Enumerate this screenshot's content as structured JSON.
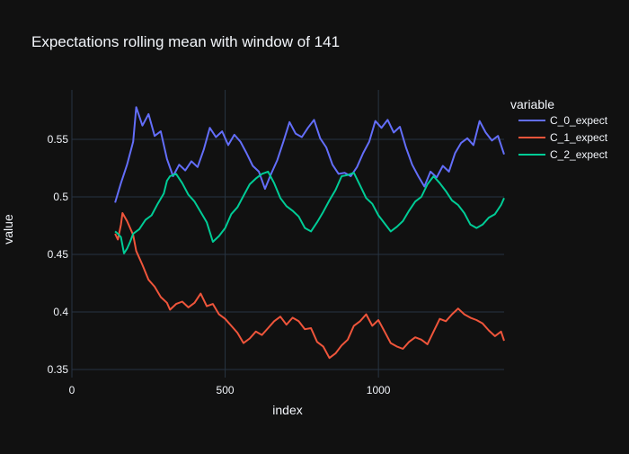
{
  "chart_data": {
    "type": "line",
    "title": "Expectations rolling mean with window of 141",
    "xlabel": "index",
    "ylabel": "value",
    "xlim": [
      0,
      1410
    ],
    "ylim": [
      0.343,
      0.593
    ],
    "xticks": [
      0,
      500,
      1000
    ],
    "xtick_labels": [
      "0",
      "500",
      "1000"
    ],
    "yticks": [
      0.35,
      0.4,
      0.45,
      0.5,
      0.55
    ],
    "ytick_labels": [
      "0.35",
      "0.4",
      "0.45",
      "0.5",
      "0.55"
    ],
    "grid": true,
    "legend_title": "variable",
    "legend_position": "top-right",
    "colors": {
      "background": "#111111",
      "grid": "#283442",
      "text": "#f2f5fa"
    },
    "series": [
      {
        "name": "C_0_expect",
        "color": "#636efa",
        "points": [
          [
            141,
            0.495
          ],
          [
            160,
            0.512
          ],
          [
            180,
            0.528
          ],
          [
            200,
            0.548
          ],
          [
            210,
            0.578
          ],
          [
            230,
            0.562
          ],
          [
            250,
            0.572
          ],
          [
            270,
            0.553
          ],
          [
            290,
            0.557
          ],
          [
            310,
            0.533
          ],
          [
            330,
            0.518
          ],
          [
            350,
            0.528
          ],
          [
            370,
            0.523
          ],
          [
            390,
            0.531
          ],
          [
            410,
            0.526
          ],
          [
            430,
            0.541
          ],
          [
            450,
            0.56
          ],
          [
            470,
            0.552
          ],
          [
            490,
            0.557
          ],
          [
            510,
            0.545
          ],
          [
            530,
            0.554
          ],
          [
            550,
            0.548
          ],
          [
            570,
            0.538
          ],
          [
            590,
            0.527
          ],
          [
            610,
            0.522
          ],
          [
            630,
            0.507
          ],
          [
            650,
            0.52
          ],
          [
            670,
            0.532
          ],
          [
            690,
            0.548
          ],
          [
            710,
            0.565
          ],
          [
            730,
            0.555
          ],
          [
            750,
            0.552
          ],
          [
            770,
            0.56
          ],
          [
            790,
            0.567
          ],
          [
            810,
            0.551
          ],
          [
            830,
            0.543
          ],
          [
            850,
            0.528
          ],
          [
            870,
            0.52
          ],
          [
            890,
            0.521
          ],
          [
            910,
            0.518
          ],
          [
            930,
            0.526
          ],
          [
            950,
            0.538
          ],
          [
            970,
            0.548
          ],
          [
            990,
            0.566
          ],
          [
            1010,
            0.56
          ],
          [
            1030,
            0.567
          ],
          [
            1050,
            0.556
          ],
          [
            1070,
            0.561
          ],
          [
            1090,
            0.543
          ],
          [
            1110,
            0.528
          ],
          [
            1130,
            0.518
          ],
          [
            1150,
            0.509
          ],
          [
            1170,
            0.522
          ],
          [
            1190,
            0.517
          ],
          [
            1210,
            0.527
          ],
          [
            1230,
            0.522
          ],
          [
            1250,
            0.538
          ],
          [
            1270,
            0.547
          ],
          [
            1290,
            0.551
          ],
          [
            1310,
            0.545
          ],
          [
            1330,
            0.566
          ],
          [
            1350,
            0.556
          ],
          [
            1370,
            0.549
          ],
          [
            1390,
            0.553
          ],
          [
            1410,
            0.537
          ]
        ]
      },
      {
        "name": "C_1_expect",
        "color": "#ef553b",
        "points": [
          [
            141,
            0.468
          ],
          [
            150,
            0.463
          ],
          [
            160,
            0.476
          ],
          [
            165,
            0.486
          ],
          [
            180,
            0.479
          ],
          [
            200,
            0.467
          ],
          [
            210,
            0.453
          ],
          [
            230,
            0.441
          ],
          [
            250,
            0.428
          ],
          [
            270,
            0.422
          ],
          [
            290,
            0.413
          ],
          [
            310,
            0.408
          ],
          [
            320,
            0.402
          ],
          [
            340,
            0.407
          ],
          [
            360,
            0.409
          ],
          [
            380,
            0.404
          ],
          [
            400,
            0.408
          ],
          [
            420,
            0.416
          ],
          [
            440,
            0.405
          ],
          [
            460,
            0.407
          ],
          [
            480,
            0.398
          ],
          [
            500,
            0.394
          ],
          [
            520,
            0.388
          ],
          [
            540,
            0.382
          ],
          [
            560,
            0.373
          ],
          [
            580,
            0.377
          ],
          [
            600,
            0.383
          ],
          [
            620,
            0.38
          ],
          [
            640,
            0.386
          ],
          [
            660,
            0.392
          ],
          [
            680,
            0.396
          ],
          [
            700,
            0.389
          ],
          [
            720,
            0.395
          ],
          [
            740,
            0.392
          ],
          [
            760,
            0.385
          ],
          [
            780,
            0.386
          ],
          [
            800,
            0.374
          ],
          [
            820,
            0.37
          ],
          [
            840,
            0.36
          ],
          [
            860,
            0.364
          ],
          [
            880,
            0.371
          ],
          [
            900,
            0.376
          ],
          [
            920,
            0.388
          ],
          [
            940,
            0.392
          ],
          [
            960,
            0.398
          ],
          [
            980,
            0.388
          ],
          [
            1000,
            0.393
          ],
          [
            1020,
            0.383
          ],
          [
            1040,
            0.373
          ],
          [
            1060,
            0.37
          ],
          [
            1080,
            0.368
          ],
          [
            1100,
            0.374
          ],
          [
            1120,
            0.378
          ],
          [
            1140,
            0.376
          ],
          [
            1160,
            0.372
          ],
          [
            1180,
            0.383
          ],
          [
            1200,
            0.394
          ],
          [
            1220,
            0.392
          ],
          [
            1240,
            0.398
          ],
          [
            1260,
            0.403
          ],
          [
            1280,
            0.398
          ],
          [
            1300,
            0.395
          ],
          [
            1320,
            0.393
          ],
          [
            1340,
            0.39
          ],
          [
            1360,
            0.384
          ],
          [
            1380,
            0.379
          ],
          [
            1400,
            0.383
          ],
          [
            1410,
            0.375
          ]
        ]
      },
      {
        "name": "C_2_expect",
        "color": "#00cc96",
        "points": [
          [
            141,
            0.47
          ],
          [
            150,
            0.468
          ],
          [
            160,
            0.465
          ],
          [
            170,
            0.451
          ],
          [
            180,
            0.455
          ],
          [
            190,
            0.461
          ],
          [
            200,
            0.468
          ],
          [
            220,
            0.472
          ],
          [
            240,
            0.48
          ],
          [
            260,
            0.484
          ],
          [
            280,
            0.494
          ],
          [
            300,
            0.503
          ],
          [
            310,
            0.514
          ],
          [
            320,
            0.518
          ],
          [
            340,
            0.52
          ],
          [
            360,
            0.512
          ],
          [
            380,
            0.502
          ],
          [
            400,
            0.496
          ],
          [
            420,
            0.487
          ],
          [
            440,
            0.478
          ],
          [
            460,
            0.461
          ],
          [
            480,
            0.466
          ],
          [
            500,
            0.473
          ],
          [
            520,
            0.485
          ],
          [
            540,
            0.491
          ],
          [
            560,
            0.501
          ],
          [
            580,
            0.511
          ],
          [
            600,
            0.516
          ],
          [
            620,
            0.52
          ],
          [
            640,
            0.522
          ],
          [
            660,
            0.512
          ],
          [
            680,
            0.499
          ],
          [
            700,
            0.492
          ],
          [
            720,
            0.488
          ],
          [
            740,
            0.483
          ],
          [
            760,
            0.473
          ],
          [
            780,
            0.47
          ],
          [
            800,
            0.478
          ],
          [
            820,
            0.487
          ],
          [
            840,
            0.497
          ],
          [
            860,
            0.506
          ],
          [
            880,
            0.518
          ],
          [
            900,
            0.519
          ],
          [
            920,
            0.521
          ],
          [
            940,
            0.51
          ],
          [
            960,
            0.499
          ],
          [
            980,
            0.494
          ],
          [
            1000,
            0.484
          ],
          [
            1020,
            0.477
          ],
          [
            1040,
            0.47
          ],
          [
            1060,
            0.474
          ],
          [
            1080,
            0.479
          ],
          [
            1100,
            0.488
          ],
          [
            1120,
            0.496
          ],
          [
            1140,
            0.5
          ],
          [
            1160,
            0.511
          ],
          [
            1180,
            0.518
          ],
          [
            1200,
            0.512
          ],
          [
            1220,
            0.505
          ],
          [
            1240,
            0.497
          ],
          [
            1260,
            0.493
          ],
          [
            1280,
            0.486
          ],
          [
            1300,
            0.476
          ],
          [
            1320,
            0.473
          ],
          [
            1340,
            0.476
          ],
          [
            1360,
            0.482
          ],
          [
            1380,
            0.485
          ],
          [
            1400,
            0.493
          ],
          [
            1410,
            0.499
          ]
        ]
      }
    ]
  }
}
